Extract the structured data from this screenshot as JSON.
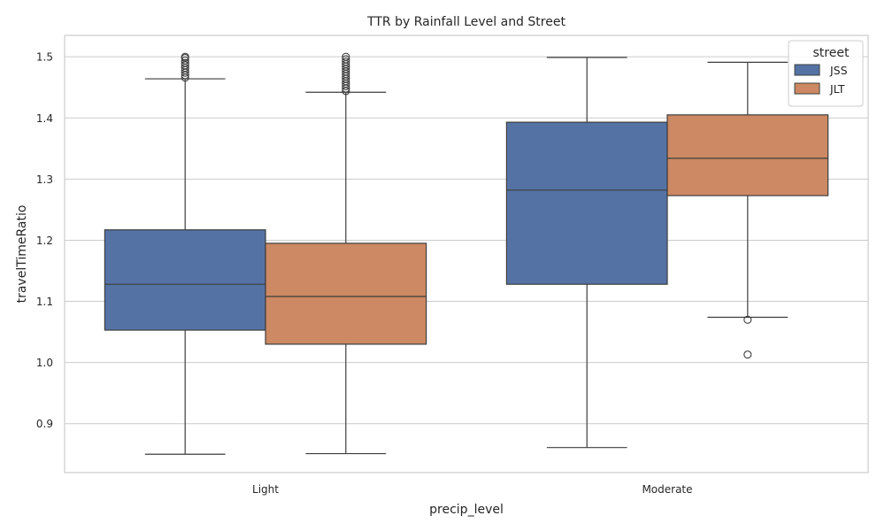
{
  "chart_data": {
    "type": "boxplot",
    "title": "TTR by Rainfall Level and Street",
    "xlabel": "precip_level",
    "ylabel": "travelTimeRatio",
    "categories": [
      "Light",
      "Moderate"
    ],
    "ylim": [
      0.82,
      1.535
    ],
    "yticks": [
      0.9,
      1.0,
      1.1,
      1.2,
      1.3,
      1.4,
      1.5
    ],
    "ytick_labels": [
      "0.9",
      "1.0",
      "1.1",
      "1.2",
      "1.3",
      "1.4",
      "1.5"
    ],
    "grid": true,
    "legend": {
      "title": "street",
      "placement": "top-right"
    },
    "series": [
      {
        "name": "JSS",
        "color": "#5572a5",
        "boxes": [
          {
            "category": "Light",
            "whislo": 0.85,
            "q1": 1.053,
            "med": 1.128,
            "q3": 1.217,
            "whishi": 1.464,
            "fliers": [
              1.466,
              1.47,
              1.474,
              1.478,
              1.482,
              1.486,
              1.49,
              1.494,
              1.498,
              1.5
            ]
          },
          {
            "category": "Moderate",
            "whislo": 0.861,
            "q1": 1.128,
            "med": 1.282,
            "q3": 1.393,
            "whishi": 1.499,
            "fliers": []
          }
        ]
      },
      {
        "name": "JLT",
        "color": "#cc8963",
        "boxes": [
          {
            "category": "Light",
            "whislo": 0.851,
            "q1": 1.03,
            "med": 1.108,
            "q3": 1.195,
            "whishi": 1.442,
            "fliers": [
              1.444,
              1.448,
              1.452,
              1.456,
              1.46,
              1.464,
              1.468,
              1.472,
              1.476,
              1.48,
              1.484,
              1.488,
              1.492,
              1.496,
              1.5
            ]
          },
          {
            "category": "Moderate",
            "whislo": 1.074,
            "q1": 1.273,
            "med": 1.334,
            "q3": 1.405,
            "whishi": 1.491,
            "fliers": [
              1.07,
              1.013
            ]
          }
        ]
      }
    ]
  }
}
